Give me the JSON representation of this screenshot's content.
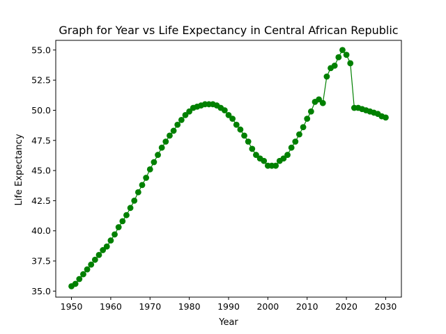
{
  "chart_data": {
    "type": "line",
    "title": "Graph for Year vs Life Expectancy in Central African Republic",
    "xlabel": "Year",
    "ylabel": "Life Expectancy",
    "xlim": [
      1946,
      2034
    ],
    "ylim": [
      34.5,
      55.8
    ],
    "xticks": [
      1950,
      1960,
      1970,
      1980,
      1990,
      2000,
      2010,
      2020,
      2030
    ],
    "yticks": [
      35.0,
      37.5,
      40.0,
      42.5,
      45.0,
      47.5,
      50.0,
      52.5,
      55.0
    ],
    "ytick_labels": [
      "35.0",
      "37.5",
      "40.0",
      "42.5",
      "45.0",
      "47.5",
      "50.0",
      "52.5",
      "55.0"
    ],
    "grid": false,
    "series_color": "#008000",
    "x": [
      1950,
      1951,
      1952,
      1953,
      1954,
      1955,
      1956,
      1957,
      1958,
      1959,
      1960,
      1961,
      1962,
      1963,
      1964,
      1965,
      1966,
      1967,
      1968,
      1969,
      1970,
      1971,
      1972,
      1973,
      1974,
      1975,
      1976,
      1977,
      1978,
      1979,
      1980,
      1981,
      1982,
      1983,
      1984,
      1985,
      1986,
      1987,
      1988,
      1989,
      1990,
      1991,
      1992,
      1993,
      1994,
      1995,
      1996,
      1997,
      1998,
      1999,
      2000,
      2001,
      2002,
      2003,
      2004,
      2005,
      2006,
      2007,
      2008,
      2009,
      2010,
      2011,
      2012,
      2013,
      2014,
      2015,
      2016,
      2017,
      2018,
      2019,
      2020,
      2021,
      2022,
      2023,
      2024,
      2025,
      2026,
      2027,
      2028,
      2029,
      2030
    ],
    "y": [
      35.4,
      35.6,
      36.0,
      36.4,
      36.8,
      37.2,
      37.6,
      38.0,
      38.4,
      38.7,
      39.2,
      39.7,
      40.3,
      40.8,
      41.3,
      41.9,
      42.5,
      43.2,
      43.8,
      44.4,
      45.1,
      45.7,
      46.3,
      46.9,
      47.4,
      47.9,
      48.3,
      48.8,
      49.2,
      49.6,
      49.9,
      50.2,
      50.3,
      50.4,
      50.5,
      50.5,
      50.5,
      50.4,
      50.2,
      50.0,
      49.6,
      49.3,
      48.8,
      48.4,
      47.9,
      47.4,
      46.8,
      46.3,
      46.0,
      45.8,
      45.4,
      45.4,
      45.4,
      45.8,
      46.0,
      46.3,
      46.9,
      47.4,
      48.0,
      48.6,
      49.3,
      49.9,
      50.7,
      50.9,
      50.6,
      52.8,
      53.5,
      53.7,
      54.4,
      55.0,
      54.6,
      53.9,
      50.2,
      50.2,
      50.1,
      50.0,
      49.9,
      49.8,
      49.7,
      49.5,
      49.4
    ]
  }
}
